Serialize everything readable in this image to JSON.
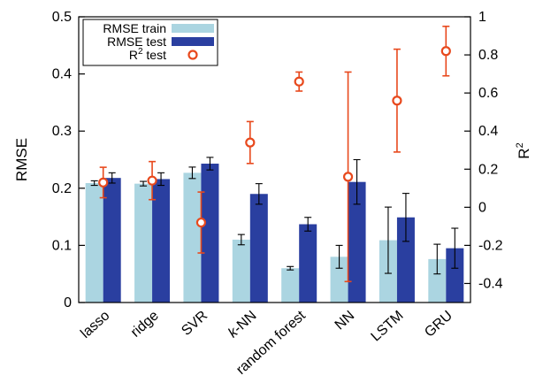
{
  "chart_data": {
    "type": "bar",
    "categories": [
      "lasso",
      "ridge",
      "SVR",
      "k-NN",
      "random forest",
      "NN",
      "LSTM",
      "GRU"
    ],
    "series": [
      {
        "name": "RMSE train",
        "axis": "left",
        "values": [
          0.209,
          0.208,
          0.227,
          0.11,
          0.06,
          0.08,
          0.109,
          0.076
        ],
        "error": [
          0.004,
          0.004,
          0.01,
          0.009,
          0.003,
          0.02,
          0.058,
          0.026
        ],
        "color": "#abd5e1"
      },
      {
        "name": "RMSE test",
        "axis": "left",
        "values": [
          0.218,
          0.216,
          0.243,
          0.19,
          0.137,
          0.211,
          0.149,
          0.095
        ],
        "error": [
          0.009,
          0.011,
          0.011,
          0.018,
          0.012,
          0.039,
          0.042,
          0.035
        ],
        "color": "#2a3fa0"
      },
      {
        "name": "R2 test",
        "axis": "right",
        "values": [
          0.13,
          0.14,
          -0.08,
          0.34,
          0.66,
          0.16,
          0.56,
          0.82
        ],
        "error": [
          0.08,
          0.1,
          0.16,
          0.11,
          0.05,
          0.55,
          0.27,
          0.13
        ],
        "color": "#e8491d"
      }
    ],
    "legend": {
      "placement": "top-left",
      "items": [
        {
          "label": "RMSE train",
          "sup": ""
        },
        {
          "label": "RMSE test",
          "sup": ""
        },
        {
          "label": "R",
          "sup": "2",
          "suffix": " test"
        }
      ]
    },
    "left_axis": {
      "label": "RMSE",
      "range": [
        0,
        0.5
      ],
      "ticks": [
        0,
        0.1,
        0.2,
        0.3,
        0.4,
        0.5
      ],
      "tick_labels": [
        "0",
        "0.1",
        "0.2",
        "0.3",
        "0.4",
        "0.5"
      ]
    },
    "right_axis": {
      "label": "R",
      "label_sup": "2",
      "range": [
        -0.5,
        1.0
      ],
      "ticks": [
        -0.4,
        -0.2,
        0,
        0.2,
        0.4,
        0.6,
        0.8,
        1
      ],
      "tick_labels": [
        "-0.4",
        "-0.2",
        "0",
        "0.2",
        "0.4",
        "0.6",
        "0.8",
        "1"
      ]
    },
    "grid": false
  }
}
